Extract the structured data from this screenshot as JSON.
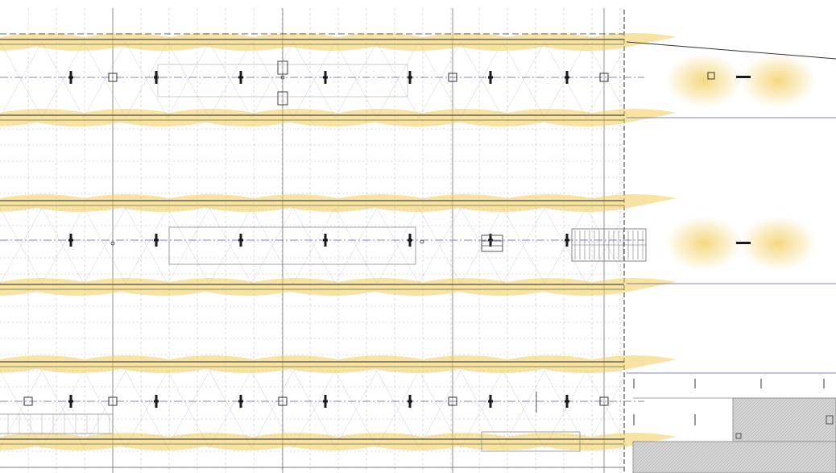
{
  "drawing": {
    "type": "architectural lighting plan",
    "colors": {
      "background": "#ffffff",
      "glow": "#f2cc55",
      "structure_line": "#4a4a4a",
      "grid_line": "#9aa0b8",
      "axis_line": "#5a5fa8",
      "fixture": "#1a1a1a",
      "hatch": "#c9c9c9"
    },
    "platforms": [
      {
        "name": "platform-1",
        "fixtures": 8,
        "end_lamps": 1
      },
      {
        "name": "platform-2",
        "fixtures": 6,
        "end_lamps": 1
      },
      {
        "name": "platform-3",
        "fixtures": 9,
        "end_lamps": 0
      }
    ]
  }
}
